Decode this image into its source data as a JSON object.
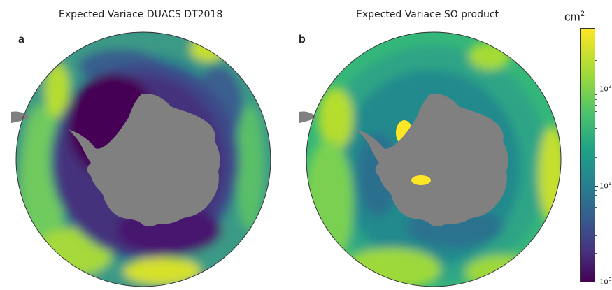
{
  "panels": [
    {
      "letter": "a",
      "title": "Expected Variace DUACS DT2018"
    },
    {
      "letter": "b",
      "title": "Expected Variace SO product"
    }
  ],
  "colorbar": {
    "unit": "cm",
    "unit_exponent": "2",
    "scale": "log",
    "range": [
      1,
      500
    ],
    "colormap": "viridis",
    "ticks": [
      {
        "base": "10",
        "exp": "0",
        "value": 1
      },
      {
        "base": "10",
        "exp": "1",
        "value": 10
      },
      {
        "base": "10",
        "exp": "2",
        "value": 100
      }
    ]
  },
  "colors": {
    "land": "#808080",
    "low": "#440154",
    "high": "#fde725"
  }
}
